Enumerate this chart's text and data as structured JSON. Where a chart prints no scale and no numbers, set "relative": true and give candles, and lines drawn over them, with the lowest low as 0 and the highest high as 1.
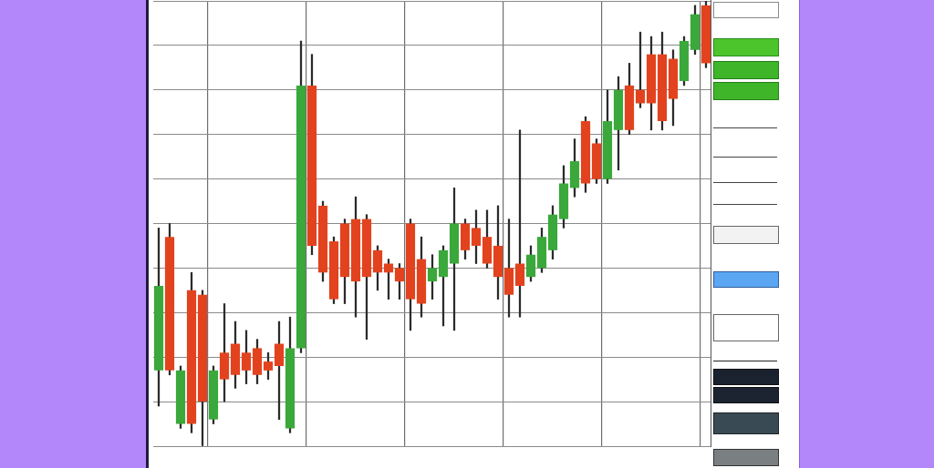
{
  "chart_data": {
    "type": "candlestick",
    "relative": true,
    "categories": [
      null,
      null,
      null,
      null,
      null,
      null,
      null,
      null,
      null,
      null,
      null,
      null,
      null,
      null,
      null,
      null,
      null,
      null,
      null,
      null,
      null,
      null,
      null,
      null,
      null,
      null,
      null,
      null,
      null,
      null,
      null,
      null,
      null,
      null,
      null,
      null,
      null,
      null,
      null,
      null,
      null,
      null,
      null,
      null,
      null,
      null,
      null,
      null,
      null,
      null,
      null
    ],
    "ohlc": [
      [
        0.17,
        0.49,
        0.09,
        0.36
      ],
      [
        0.47,
        0.5,
        0.16,
        0.17
      ],
      [
        0.05,
        0.18,
        0.04,
        0.17
      ],
      [
        0.35,
        0.39,
        0.03,
        0.05
      ],
      [
        0.34,
        0.35,
        0,
        0.1
      ],
      [
        0.06,
        0.18,
        0.05,
        0.17
      ],
      [
        0.21,
        0.32,
        0.1,
        0.15
      ],
      [
        0.23,
        0.28,
        0.13,
        0.16
      ],
      [
        0.21,
        0.26,
        0.14,
        0.17
      ],
      [
        0.22,
        0.24,
        0.14,
        0.16
      ],
      [
        0.19,
        0.21,
        0.15,
        0.17
      ],
      [
        0.23,
        0.28,
        0.06,
        0.18
      ],
      [
        0.04,
        0.29,
        0.03,
        0.22
      ],
      [
        0.22,
        0.91,
        0.21,
        0.81
      ],
      [
        0.81,
        0.88,
        0.43,
        0.45
      ],
      [
        0.54,
        0.55,
        0.37,
        0.39
      ],
      [
        0.46,
        0.47,
        0.32,
        0.33
      ],
      [
        0.5,
        0.51,
        0.32,
        0.38
      ],
      [
        0.51,
        0.56,
        0.29,
        0.37
      ],
      [
        0.51,
        0.52,
        0.24,
        0.38
      ],
      [
        0.44,
        0.45,
        0.35,
        0.39
      ],
      [
        0.41,
        0.42,
        0.33,
        0.39
      ],
      [
        0.4,
        0.41,
        0.33,
        0.37
      ],
      [
        0.5,
        0.51,
        0.26,
        0.33
      ],
      [
        0.42,
        0.47,
        0.29,
        0.32
      ],
      [
        0.37,
        0.43,
        0.33,
        0.4
      ],
      [
        0.38,
        0.45,
        0.27,
        0.44
      ],
      [
        0.41,
        0.58,
        0.26,
        0.5
      ],
      [
        0.5,
        0.51,
        0.42,
        0.44
      ],
      [
        0.49,
        0.53,
        0.41,
        0.45
      ],
      [
        0.47,
        0.53,
        0.4,
        0.41
      ],
      [
        0.45,
        0.54,
        0.33,
        0.38
      ],
      [
        0.4,
        0.51,
        0.29,
        0.34
      ],
      [
        0.41,
        0.71,
        0.29,
        0.36
      ],
      [
        0.38,
        0.45,
        0.37,
        0.43
      ],
      [
        0.4,
        0.49,
        0.39,
        0.47
      ],
      [
        0.44,
        0.54,
        0.42,
        0.52
      ],
      [
        0.51,
        0.63,
        0.49,
        0.59
      ],
      [
        0.58,
        0.69,
        0.56,
        0.64
      ],
      [
        0.73,
        0.74,
        0.57,
        0.59
      ],
      [
        0.68,
        0.69,
        0.59,
        0.6
      ],
      [
        0.6,
        0.8,
        0.59,
        0.73
      ],
      [
        0.71,
        0.83,
        0.62,
        0.8
      ],
      [
        0.81,
        0.86,
        0.7,
        0.71
      ],
      [
        0.8,
        0.93,
        0.76,
        0.77
      ],
      [
        0.88,
        0.92,
        0.71,
        0.77
      ],
      [
        0.88,
        0.93,
        0.71,
        0.73
      ],
      [
        0.87,
        0.89,
        0.72,
        0.78
      ],
      [
        0.82,
        0.92,
        0.81,
        0.91
      ],
      [
        0.89,
        0.99,
        0.88,
        0.97
      ],
      [
        0.99,
        1,
        0.85,
        0.86
      ]
    ],
    "colors": [
      "#3aa83a",
      "#e2431e",
      "#3aa83a",
      "#e2431e",
      "#e2431e",
      "#3aa83a",
      "#e2431e",
      "#e2431e",
      "#e2431e",
      "#e2431e",
      "#e2431e",
      "#e2431e",
      "#3aa83a",
      "#3aa83a",
      "#e2431e",
      "#e2431e",
      "#e2431e",
      "#e2431e",
      "#e2431e",
      "#e2431e",
      "#e2431e",
      "#e2431e",
      "#e2431e",
      "#e2431e",
      "#e2431e",
      "#3aa83a",
      "#3aa83a",
      "#3aa83a",
      "#e2431e",
      "#e2431e",
      "#e2431e",
      "#e2431e",
      "#e2431e",
      "#e2431e",
      "#3aa83a",
      "#3aa83a",
      "#3aa83a",
      "#3aa83a",
      "#3aa83a",
      "#e2431e",
      "#e2431e",
      "#3aa83a",
      "#3aa83a",
      "#e2431e",
      "#e2431e",
      "#e2431e",
      "#e2431e",
      "#e2431e",
      "#3aa83a",
      "#3aa83a",
      "#e2431e"
    ],
    "grid": true,
    "tick_labels": false
  }
}
